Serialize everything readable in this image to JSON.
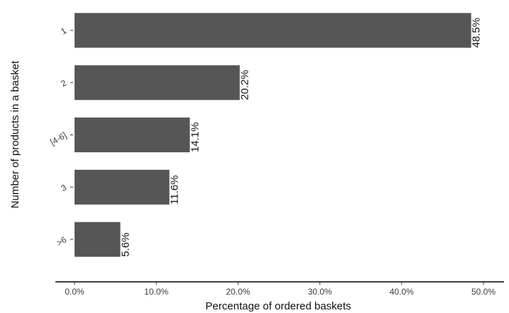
{
  "chart_data": {
    "type": "bar",
    "orientation": "horizontal",
    "categories": [
      "1",
      "2",
      "[4-6]",
      "3",
      ">6"
    ],
    "values": [
      48.5,
      20.2,
      14.1,
      11.6,
      5.6
    ],
    "data_labels": [
      "48.5%",
      "20.2%",
      "14.1%",
      "11.6%",
      "5.6%"
    ],
    "xlabel": "Percentage of ordered baskets",
    "ylabel": "Number of products in a basket",
    "xlim": [
      0,
      50
    ],
    "x_ticks": [
      0,
      10,
      20,
      30,
      40,
      50
    ],
    "x_tick_labels": [
      "0.0%",
      "10.0%",
      "20.0%",
      "30.0%",
      "40.0%",
      "50.0%"
    ],
    "grid": false,
    "bar_color": "#565656"
  }
}
